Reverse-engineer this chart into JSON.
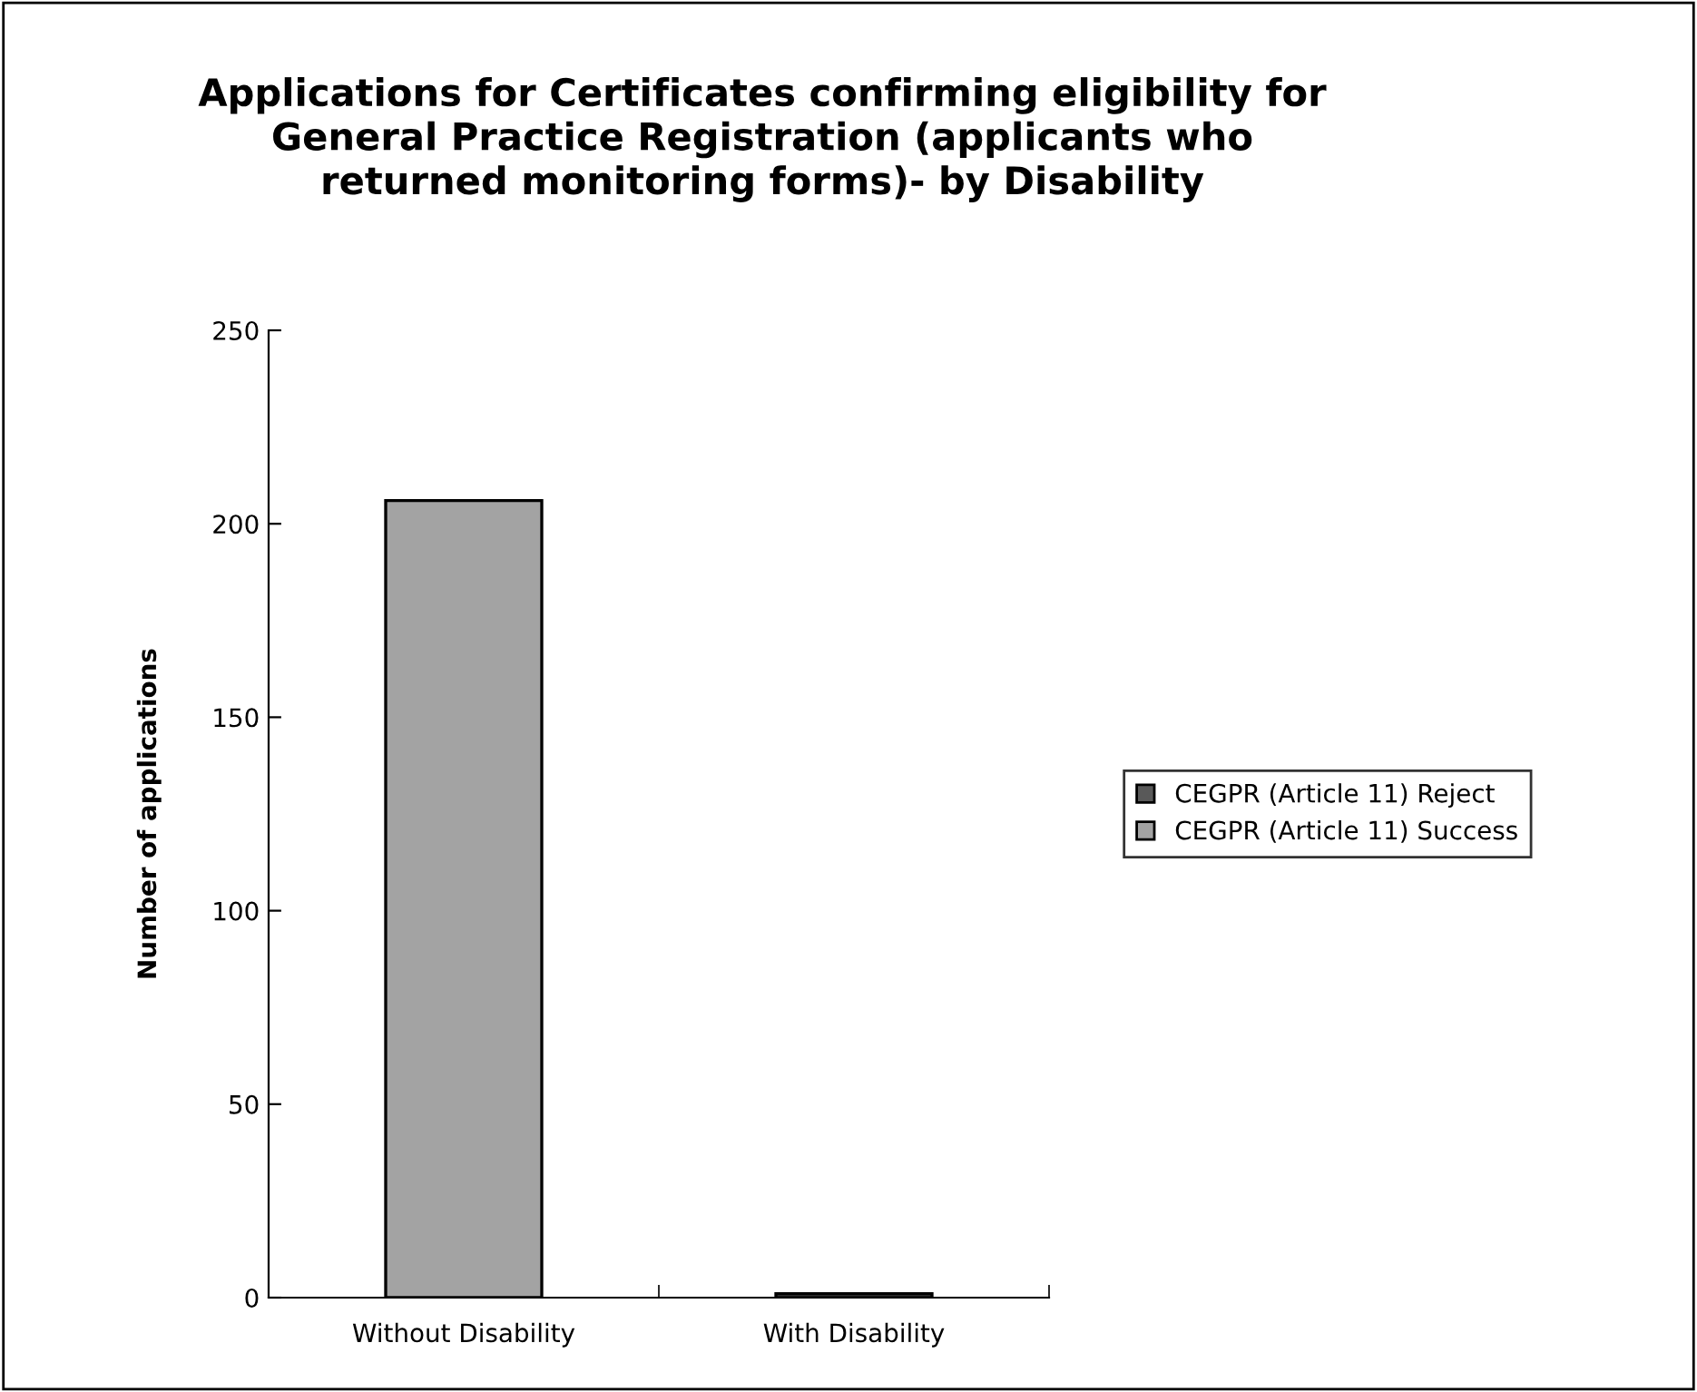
{
  "chart_data": {
    "type": "bar",
    "title": "Applications for Certificates confirming eligibility for\nGeneral Practice Registration (applicants who\nreturned monitoring forms)- by Disability",
    "ylabel": "Number of applications",
    "categories": [
      "Without Disability",
      "With Disability"
    ],
    "series": [
      {
        "name": "CEGPR (Article 11) Reject",
        "color": "#595959",
        "values": [
          0,
          1
        ]
      },
      {
        "name": "CEGPR (Article 11) Success",
        "color": "#a3a3a3",
        "values": [
          206,
          0
        ]
      }
    ],
    "ylim": [
      0,
      250
    ],
    "yticks": [
      0,
      50,
      100,
      150,
      200,
      250
    ],
    "grid": false,
    "legend": "right"
  }
}
